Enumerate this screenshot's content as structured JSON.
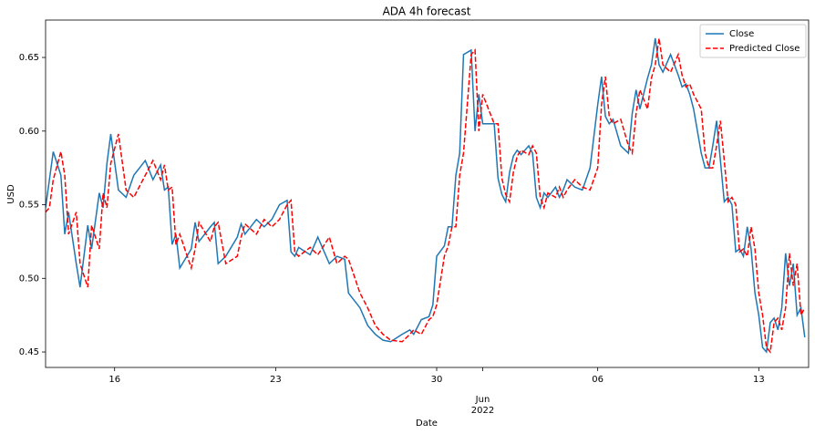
{
  "chart_data": {
    "type": "line",
    "title": "ADA 4h forecast",
    "x_label": "Date",
    "y_label": "USD",
    "x": [
      "2022-05-13T00:00",
      "2022-05-13T04:00",
      "2022-05-13T08:00",
      "2022-05-13T16:00",
      "2022-05-13T20:00",
      "2022-05-14T00:00",
      "2022-05-14T08:00",
      "2022-05-14T12:00",
      "2022-05-14T20:00",
      "2022-05-15T00:00",
      "2022-05-15T08:00",
      "2022-05-15T12:00",
      "2022-05-15T16:00",
      "2022-05-15T20:00",
      "2022-05-16T04:00",
      "2022-05-16T12:00",
      "2022-05-16T20:00",
      "2022-05-17T08:00",
      "2022-05-17T16:00",
      "2022-05-18T00:00",
      "2022-05-18T04:00",
      "2022-05-18T08:00",
      "2022-05-18T12:00",
      "2022-05-18T16:00",
      "2022-05-18T20:00",
      "2022-05-19T08:00",
      "2022-05-19T12:00",
      "2022-05-19T16:00",
      "2022-05-20T04:00",
      "2022-05-20T08:00",
      "2022-05-20T12:00",
      "2022-05-20T20:00",
      "2022-05-21T08:00",
      "2022-05-21T12:00",
      "2022-05-21T16:00",
      "2022-05-22T04:00",
      "2022-05-22T12:00",
      "2022-05-22T20:00",
      "2022-05-23T04:00",
      "2022-05-23T12:00",
      "2022-05-23T16:00",
      "2022-05-23T20:00",
      "2022-05-24T00:00",
      "2022-05-24T12:00",
      "2022-05-24T20:00",
      "2022-05-25T08:00",
      "2022-05-25T16:00",
      "2022-05-26T00:00",
      "2022-05-26T04:00",
      "2022-05-26T16:00",
      "2022-05-27T00:00",
      "2022-05-27T08:00",
      "2022-05-27T16:00",
      "2022-05-28T00:00",
      "2022-05-28T12:00",
      "2022-05-28T20:00",
      "2022-05-29T00:00",
      "2022-05-29T08:00",
      "2022-05-29T16:00",
      "2022-05-29T20:00",
      "2022-05-30T00:00",
      "2022-05-30T08:00",
      "2022-05-30T12:00",
      "2022-05-30T16:00",
      "2022-05-30T20:00",
      "2022-05-31T00:00",
      "2022-05-31T04:00",
      "2022-05-31T12:00",
      "2022-05-31T16:00",
      "2022-05-31T20:00",
      "2022-06-01T00:00",
      "2022-06-01T12:00",
      "2022-06-01T16:00",
      "2022-06-01T20:00",
      "2022-06-02T00:00",
      "2022-06-02T04:00",
      "2022-06-02T08:00",
      "2022-06-02T12:00",
      "2022-06-02T16:00",
      "2022-06-03T00:00",
      "2022-06-03T04:00",
      "2022-06-03T08:00",
      "2022-06-03T12:00",
      "2022-06-03T16:00",
      "2022-06-03T20:00",
      "2022-06-04T04:00",
      "2022-06-04T08:00",
      "2022-06-04T12:00",
      "2022-06-04T16:00",
      "2022-06-05T00:00",
      "2022-06-05T08:00",
      "2022-06-05T16:00",
      "2022-06-06T00:00",
      "2022-06-06T04:00",
      "2022-06-06T08:00",
      "2022-06-06T12:00",
      "2022-06-06T16:00",
      "2022-06-07T00:00",
      "2022-06-07T08:00",
      "2022-06-07T12:00",
      "2022-06-07T16:00",
      "2022-06-07T20:00",
      "2022-06-08T04:00",
      "2022-06-08T08:00",
      "2022-06-08T12:00",
      "2022-06-08T16:00",
      "2022-06-08T20:00",
      "2022-06-09T04:00",
      "2022-06-09T12:00",
      "2022-06-09T16:00",
      "2022-06-09T20:00",
      "2022-06-10T00:00",
      "2022-06-10T04:00",
      "2022-06-10T12:00",
      "2022-06-10T16:00",
      "2022-06-10T20:00",
      "2022-06-11T00:00",
      "2022-06-11T04:00",
      "2022-06-11T08:00",
      "2022-06-11T12:00",
      "2022-06-11T16:00",
      "2022-06-11T20:00",
      "2022-06-12T00:00",
      "2022-06-12T04:00",
      "2022-06-12T08:00",
      "2022-06-12T12:00",
      "2022-06-12T16:00",
      "2022-06-12T20:00",
      "2022-06-13T00:00",
      "2022-06-13T04:00",
      "2022-06-13T08:00",
      "2022-06-13T12:00",
      "2022-06-13T16:00",
      "2022-06-13T20:00",
      "2022-06-14T00:00",
      "2022-06-14T04:00",
      "2022-06-14T08:00",
      "2022-06-14T12:00",
      "2022-06-14T16:00",
      "2022-06-14T20:00",
      "2022-06-15T00:00"
    ],
    "series": [
      {
        "name": "Close",
        "color": "#1f77b4",
        "dash": false,
        "values": [
          0.548,
          0.567,
          0.586,
          0.57,
          0.53,
          0.545,
          0.51,
          0.494,
          0.536,
          0.52,
          0.558,
          0.548,
          0.578,
          0.598,
          0.56,
          0.555,
          0.57,
          0.58,
          0.567,
          0.577,
          0.56,
          0.562,
          0.523,
          0.53,
          0.507,
          0.52,
          0.538,
          0.525,
          0.535,
          0.538,
          0.51,
          0.515,
          0.528,
          0.537,
          0.53,
          0.54,
          0.535,
          0.54,
          0.55,
          0.553,
          0.518,
          0.515,
          0.521,
          0.516,
          0.528,
          0.51,
          0.515,
          0.513,
          0.49,
          0.48,
          0.468,
          0.462,
          0.458,
          0.457,
          0.462,
          0.465,
          0.462,
          0.472,
          0.474,
          0.482,
          0.515,
          0.522,
          0.535,
          0.535,
          0.57,
          0.585,
          0.652,
          0.655,
          0.6,
          0.625,
          0.605,
          0.605,
          0.568,
          0.557,
          0.552,
          0.572,
          0.583,
          0.587,
          0.584,
          0.59,
          0.585,
          0.555,
          0.548,
          0.558,
          0.555,
          0.562,
          0.555,
          0.56,
          0.567,
          0.562,
          0.56,
          0.575,
          0.618,
          0.637,
          0.61,
          0.605,
          0.608,
          0.59,
          0.585,
          0.612,
          0.628,
          0.615,
          0.636,
          0.645,
          0.663,
          0.645,
          0.64,
          0.652,
          0.638,
          0.63,
          0.632,
          0.625,
          0.615,
          0.585,
          0.575,
          0.575,
          0.59,
          0.607,
          0.58,
          0.552,
          0.555,
          0.55,
          0.518,
          0.52,
          0.515,
          0.535,
          0.52,
          0.49,
          0.475,
          0.453,
          0.45,
          0.47,
          0.473,
          0.465,
          0.48,
          0.517,
          0.495,
          0.51,
          0.475,
          0.48,
          0.46
        ]
      },
      {
        "name": "Predicted Close",
        "color": "#ff0000",
        "dash": true,
        "values": [
          0.545,
          0.548,
          0.567,
          0.586,
          0.57,
          0.53,
          0.545,
          0.51,
          0.494,
          0.536,
          0.52,
          0.558,
          0.548,
          0.578,
          0.598,
          0.56,
          0.555,
          0.57,
          0.58,
          0.567,
          0.577,
          0.56,
          0.562,
          0.523,
          0.53,
          0.507,
          0.52,
          0.538,
          0.525,
          0.535,
          0.538,
          0.51,
          0.515,
          0.528,
          0.537,
          0.53,
          0.54,
          0.535,
          0.54,
          0.55,
          0.553,
          0.518,
          0.515,
          0.521,
          0.516,
          0.528,
          0.51,
          0.515,
          0.513,
          0.49,
          0.48,
          0.468,
          0.462,
          0.458,
          0.457,
          0.462,
          0.465,
          0.462,
          0.472,
          0.474,
          0.482,
          0.515,
          0.522,
          0.535,
          0.535,
          0.57,
          0.585,
          0.652,
          0.655,
          0.6,
          0.625,
          0.605,
          0.605,
          0.568,
          0.557,
          0.552,
          0.572,
          0.583,
          0.587,
          0.584,
          0.59,
          0.585,
          0.555,
          0.548,
          0.558,
          0.555,
          0.562,
          0.555,
          0.56,
          0.567,
          0.562,
          0.56,
          0.575,
          0.618,
          0.637,
          0.61,
          0.605,
          0.608,
          0.59,
          0.585,
          0.612,
          0.628,
          0.615,
          0.636,
          0.645,
          0.663,
          0.645,
          0.64,
          0.652,
          0.638,
          0.63,
          0.632,
          0.625,
          0.615,
          0.585,
          0.575,
          0.575,
          0.59,
          0.607,
          0.58,
          0.552,
          0.555,
          0.55,
          0.518,
          0.52,
          0.515,
          0.535,
          0.52,
          0.49,
          0.475,
          0.453,
          0.45,
          0.47,
          0.473,
          0.465,
          0.48,
          0.517,
          0.495,
          0.51,
          0.475,
          0.48
        ]
      }
    ],
    "xlim": [
      "2022-05-13T00:00",
      "2022-06-15T04:00"
    ],
    "xticks": [
      {
        "value": "2022-05-16",
        "label": "16"
      },
      {
        "value": "2022-05-23",
        "label": "23"
      },
      {
        "value": "2022-05-30",
        "label": "30"
      },
      {
        "value": "2022-06-01",
        "label": "Jun\n2022"
      },
      {
        "value": "2022-06-06",
        "label": "06"
      },
      {
        "value": "2022-06-13",
        "label": "13"
      }
    ],
    "ylim": [
      0.4395,
      0.6754
    ],
    "yticks": [
      0.45,
      {
        "value": 0.5,
        "label": "0.50"
      },
      0.55,
      {
        "value": 0.6,
        "label": "0.60"
      },
      0.65
    ],
    "grid": false,
    "legend": "upper right"
  }
}
